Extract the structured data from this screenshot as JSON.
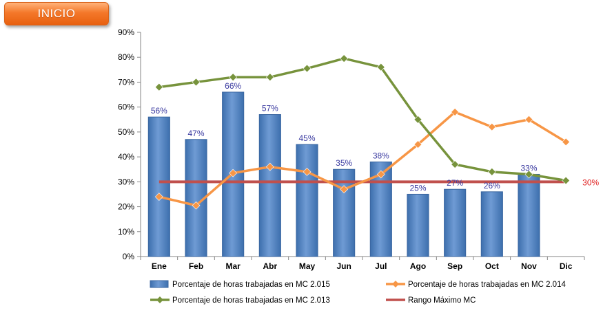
{
  "button": {
    "label": "INICIO"
  },
  "colors": {
    "bar_fill": "#4f81bd",
    "bar_fill_light": "#6f9bd4",
    "bar_stroke": "#3a66a0",
    "series_2014": "#f79646",
    "series_2013": "#77933c",
    "threshold": "#c0504d",
    "bar_label": "#3a3aa0",
    "threshold_label": "#e02020"
  },
  "chart_data": {
    "type": "bar",
    "categories": [
      "Ene",
      "Feb",
      "Mar",
      "Abr",
      "May",
      "Jun",
      "Jul",
      "Ago",
      "Sep",
      "Oct",
      "Nov",
      "Dic"
    ],
    "ylim": [
      0,
      90
    ],
    "yticks": [
      "0%",
      "10%",
      "20%",
      "30%",
      "40%",
      "50%",
      "60%",
      "70%",
      "80%",
      "90%"
    ],
    "series": [
      {
        "name": "Porcentaje de horas trabajadas en MC 2.015",
        "type": "bar",
        "values": [
          56,
          47,
          66,
          57,
          45,
          35,
          38,
          25,
          27,
          26,
          33,
          null
        ],
        "labels": [
          "56%",
          "47%",
          "66%",
          "57%",
          "45%",
          "35%",
          "38%",
          "25%",
          "27%",
          "26%",
          "33%",
          ""
        ]
      },
      {
        "name": "Porcentaje de horas trabajadas en MC 2.014",
        "type": "line",
        "values": [
          24,
          20.5,
          33.5,
          36,
          34,
          27,
          33,
          45,
          58,
          52,
          55,
          46
        ]
      },
      {
        "name": "Porcentaje de horas trabajadas en MC 2.013",
        "type": "line",
        "values": [
          68,
          70,
          72,
          72,
          75.5,
          79.5,
          76,
          55,
          37,
          34,
          33,
          30.5
        ]
      },
      {
        "name": "Rango Máximo MC",
        "type": "line",
        "values": [
          30,
          30,
          30,
          30,
          30,
          30,
          30,
          30,
          30,
          30,
          30,
          30
        ],
        "label": "30%"
      }
    ],
    "legend_position": "bottom",
    "grid": false
  }
}
